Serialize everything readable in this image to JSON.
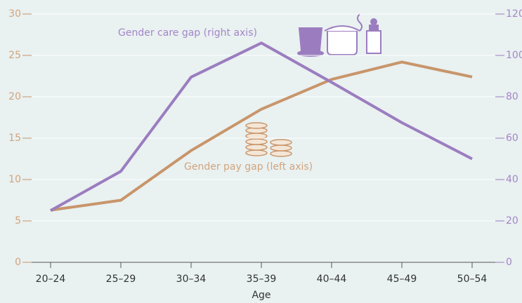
{
  "chart_data": {
    "type": "line",
    "x_label": "Age",
    "categories": [
      "20–24",
      "25–29",
      "30–34",
      "35–39",
      "40–44",
      "45–49",
      "50–54"
    ],
    "series": [
      {
        "name": "Gender pay gap (left axis)",
        "color": "#c8956a",
        "label_color": "#d2a47c",
        "axis": "y",
        "values": [
          6.3,
          7.5,
          13.5,
          18.5,
          22.1,
          24.2,
          22.4
        ]
      },
      {
        "name": "Gender care gap (right axis)",
        "color": "#9b7dbf",
        "label_color": "#a386c6",
        "axis": "y2",
        "values": [
          25,
          44,
          89.5,
          106,
          87,
          67.5,
          50
        ]
      }
    ],
    "ylim": [
      0,
      30
    ],
    "yticks": [
      0,
      5,
      10,
      15,
      20,
      25,
      30
    ],
    "y2lim": [
      0,
      120
    ],
    "y2ticks": [
      0,
      20,
      40,
      60,
      80,
      100,
      120
    ],
    "grid": true
  }
}
